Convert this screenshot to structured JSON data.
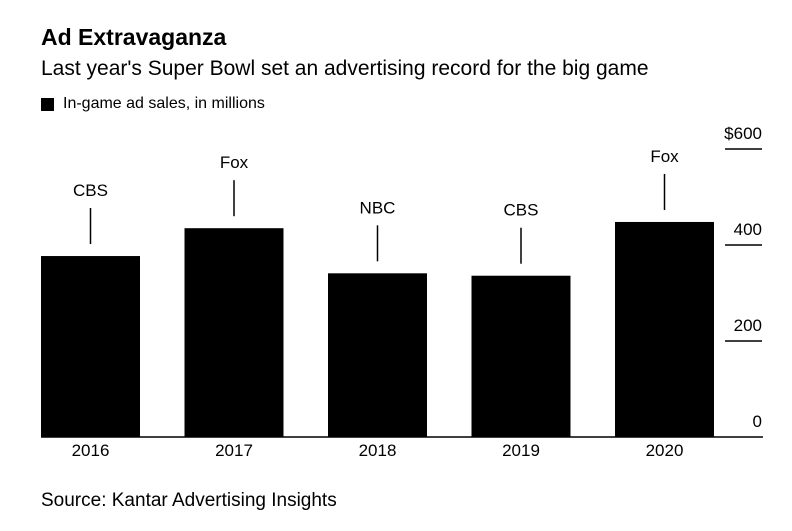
{
  "title": "Ad Extravaganza",
  "subtitle": "Last year's Super Bowl set an advertising record for the big game",
  "legend_label": "In-game ad sales, in millions",
  "source": "Source: Kantar Advertising Insights",
  "chart_data": {
    "type": "bar",
    "categories": [
      "2016",
      "2017",
      "2018",
      "2019",
      "2020"
    ],
    "values": [
      377,
      435,
      341,
      336,
      448
    ],
    "annotations": [
      "CBS",
      "Fox",
      "NBC",
      "CBS",
      "Fox"
    ],
    "series": [
      {
        "name": "In-game ad sales, in millions",
        "values": [
          377,
          435,
          341,
          336,
          448
        ]
      }
    ],
    "ylim": [
      0,
      600
    ],
    "yticks": [
      0,
      200,
      400,
      600
    ],
    "ytick_labels": [
      "0",
      "200",
      "400",
      "$600"
    ],
    "bar_color": "#000000",
    "axis_side": "right",
    "grid": false
  }
}
